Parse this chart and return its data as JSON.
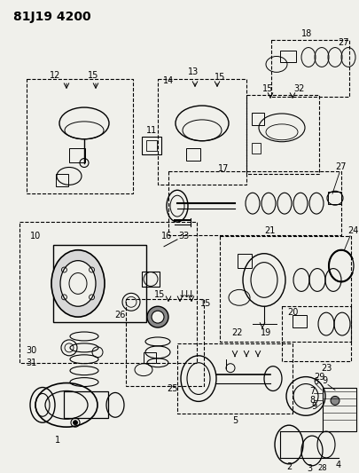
{
  "title": "81J19 4200",
  "bg": "#f5f5f0",
  "fig_width": 4.06,
  "fig_height": 5.33,
  "dpi": 100
}
